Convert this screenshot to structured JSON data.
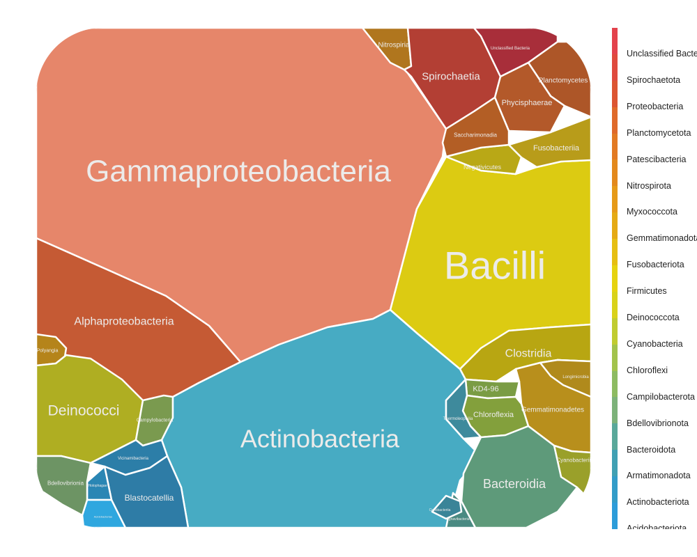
{
  "chart_data": {
    "type": "voronoi-treemap",
    "title": "",
    "legend": {
      "placement": "right",
      "items": [
        {
          "label": "Unclassified Bacteria",
          "color": "#e3424c"
        },
        {
          "label": "Spirochaetota",
          "color": "#df4a3e"
        },
        {
          "label": "Proteobacteria",
          "color": "#dc5532"
        },
        {
          "label": "Planctomycetota",
          "color": "#df6a2a"
        },
        {
          "label": "Patescibacteria",
          "color": "#e27a23"
        },
        {
          "label": "Nitrospirota",
          "color": "#e3891c"
        },
        {
          "label": "Myxococcota",
          "color": "#e69a18"
        },
        {
          "label": "Gemmatimonadota",
          "color": "#e5aa14"
        },
        {
          "label": "Fusobacteriota",
          "color": "#e6bf12"
        },
        {
          "label": "Firmicutes",
          "color": "#e6d30f"
        },
        {
          "label": "Deinococcota",
          "color": "#d9d21a"
        },
        {
          "label": "Cyanobacteria",
          "color": "#c0cc30"
        },
        {
          "label": "Chloroflexi",
          "color": "#a2c34c"
        },
        {
          "label": "Campilobacterota",
          "color": "#8dbb62"
        },
        {
          "label": "Bdellovibrionota",
          "color": "#7db27a"
        },
        {
          "label": "Bacteroidota",
          "color": "#5aa89a"
        },
        {
          "label": "Armatimonadota",
          "color": "#40a0b3"
        },
        {
          "label": "Actinobacteriota",
          "color": "#329cc8"
        },
        {
          "label": "Acidobacteriota",
          "color": "#2c9cd9"
        }
      ]
    },
    "cells": [
      {
        "label": "Gammaproteobacteria",
        "phylum": "Proteobacteria",
        "color": "#e6866a"
      },
      {
        "label": "Alphaproteobacteria",
        "phylum": "Proteobacteria",
        "color": "#c55a34"
      },
      {
        "label": "Polyangia",
        "phylum": "Myxococcota",
        "color": "#b5841a"
      },
      {
        "label": "Deinococci",
        "phylum": "Deinococcota",
        "color": "#afae22"
      },
      {
        "label": "Campylobacteria",
        "phylum": "Campilobacterota",
        "color": "#7a9a4f"
      },
      {
        "label": "Actinobacteria",
        "phylum": "Actinobacteriota",
        "color": "#47abc3"
      },
      {
        "label": "Bacilli",
        "phylum": "Firmicutes",
        "color": "#dccb12"
      },
      {
        "label": "Clostridia",
        "phylum": "Firmicutes",
        "color": "#b8a612"
      },
      {
        "label": "Negativicutes",
        "phylum": "Firmicutes",
        "color": "#b9a816"
      },
      {
        "label": "Fusobacteriia",
        "phylum": "Fusobacteriota",
        "color": "#b89c1a"
      },
      {
        "label": "Nitrospiria",
        "phylum": "Nitrospirota",
        "color": "#b0761e"
      },
      {
        "label": "Spirochaetia",
        "phylum": "Spirochaetota",
        "color": "#b33f34"
      },
      {
        "label": "Unclassified Bacteria",
        "phylum": "Unclassified Bacteria",
        "color": "#a82e3a"
      },
      {
        "label": "Planctomycetes",
        "phylum": "Planctomycetota",
        "color": "#ad5628"
      },
      {
        "label": "Phycisphaerae",
        "phylum": "Planctomycetota",
        "color": "#b3592a"
      },
      {
        "label": "Saccharimonadia",
        "phylum": "Patescibacteria",
        "color": "#b35e25"
      },
      {
        "label": "Gemmatimonadetes",
        "phylum": "Gemmatimonadota",
        "color": "#b88f1c"
      },
      {
        "label": "Longimicrobia",
        "phylum": "Gemmatimonadota",
        "color": "#b08a1c"
      },
      {
        "label": "KD4-96",
        "phylum": "Chloroflexi",
        "color": "#7a9c44"
      },
      {
        "label": "Chloroflexia",
        "phylum": "Chloroflexi",
        "color": "#83a03c"
      },
      {
        "label": "Cyanobacteriia",
        "phylum": "Cyanobacteria",
        "color": "#9aa02a"
      },
      {
        "label": "Bacteroidia",
        "phylum": "Bacteroidota",
        "color": "#5e9a7a"
      },
      {
        "label": "Ignavibacteria",
        "phylum": "Bacteroidota",
        "color": "#4a8a82"
      },
      {
        "label": "Thermoleophilia",
        "phylum": "Actinobacteriota",
        "color": "#3e8a9c"
      },
      {
        "label": "Coriobacteriia",
        "phylum": "Actinobacteriota",
        "color": "#3a8498"
      },
      {
        "label": "Vicinamibacteria",
        "phylum": "Acidobacteriota",
        "color": "#2c7ea8"
      },
      {
        "label": "Blastocatellia",
        "phylum": "Acidobacteriota",
        "color": "#2e7ca6"
      },
      {
        "label": "Holophagae",
        "phylum": "Acidobacteriota",
        "color": "#2a86b4"
      },
      {
        "label": "Acidobacteriae",
        "phylum": "Acidobacteriota",
        "color": "#2fa7df"
      },
      {
        "label": "Bdellovibrionia",
        "phylum": "Bdellovibrionota",
        "color": "#6d9464"
      }
    ]
  }
}
